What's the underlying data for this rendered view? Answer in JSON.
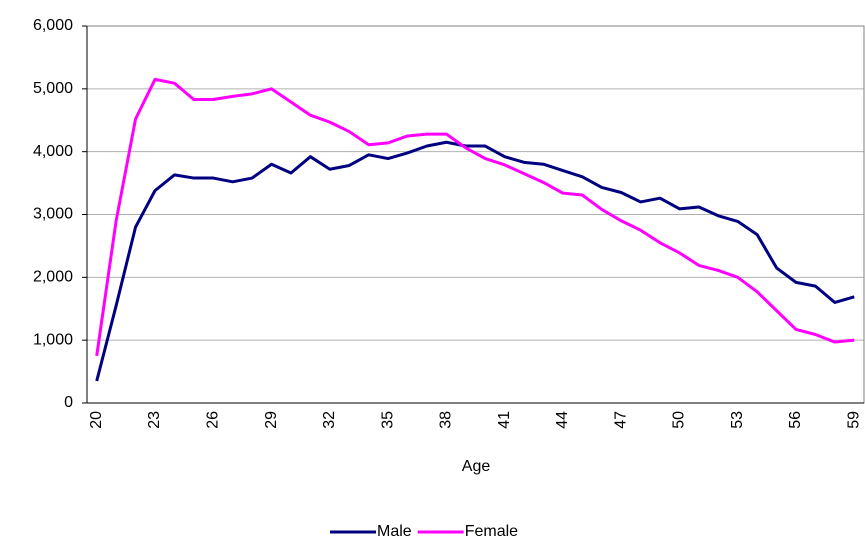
{
  "chart_data": {
    "type": "line",
    "x_label": "Age",
    "categories": [
      20,
      null,
      null,
      23,
      null,
      null,
      26,
      null,
      null,
      29,
      null,
      null,
      32,
      null,
      null,
      35,
      null,
      null,
      38,
      null,
      null,
      41,
      null,
      null,
      44,
      null,
      null,
      47,
      null,
      null,
      50,
      null,
      null,
      53,
      null,
      null,
      56,
      null,
      null,
      59
    ],
    "series": [
      {
        "name": "Male",
        "color": "#000080",
        "values": [
          350,
          1550,
          2800,
          3380,
          3630,
          3580,
          3580,
          3520,
          3580,
          3800,
          3660,
          3920,
          3720,
          3780,
          3950,
          3890,
          3980,
          4090,
          4150,
          4090,
          4090,
          3920,
          3830,
          3800,
          3700,
          3600,
          3430,
          3350,
          3200,
          3260,
          3090,
          3120,
          2980,
          2890,
          2680,
          2150,
          1920,
          1860,
          1600,
          1690
        ]
      },
      {
        "name": "Female",
        "color": "#ff00ff",
        "values": [
          750,
          2900,
          4520,
          5150,
          5090,
          4830,
          4830,
          4880,
          4920,
          5000,
          4790,
          4580,
          4470,
          4320,
          4110,
          4140,
          4250,
          4280,
          4280,
          4060,
          3890,
          3790,
          3650,
          3510,
          3340,
          3310,
          3080,
          2900,
          2750,
          2550,
          2390,
          2190,
          2110,
          2000,
          1770,
          1470,
          1170,
          1090,
          970,
          1000
        ]
      }
    ],
    "ylim": [
      0,
      6000
    ],
    "yticks": [
      0,
      {
        "value": 1000,
        "label": "1,000"
      },
      {
        "value": 2000,
        "label": "2,000"
      },
      {
        "value": 3000,
        "label": "3,000"
      },
      {
        "value": 4000,
        "label": "4,000"
      },
      {
        "value": 5000,
        "label": "5,000"
      },
      {
        "value": 6000,
        "label": "6,000"
      }
    ],
    "grid": true,
    "legend": "bottom"
  }
}
